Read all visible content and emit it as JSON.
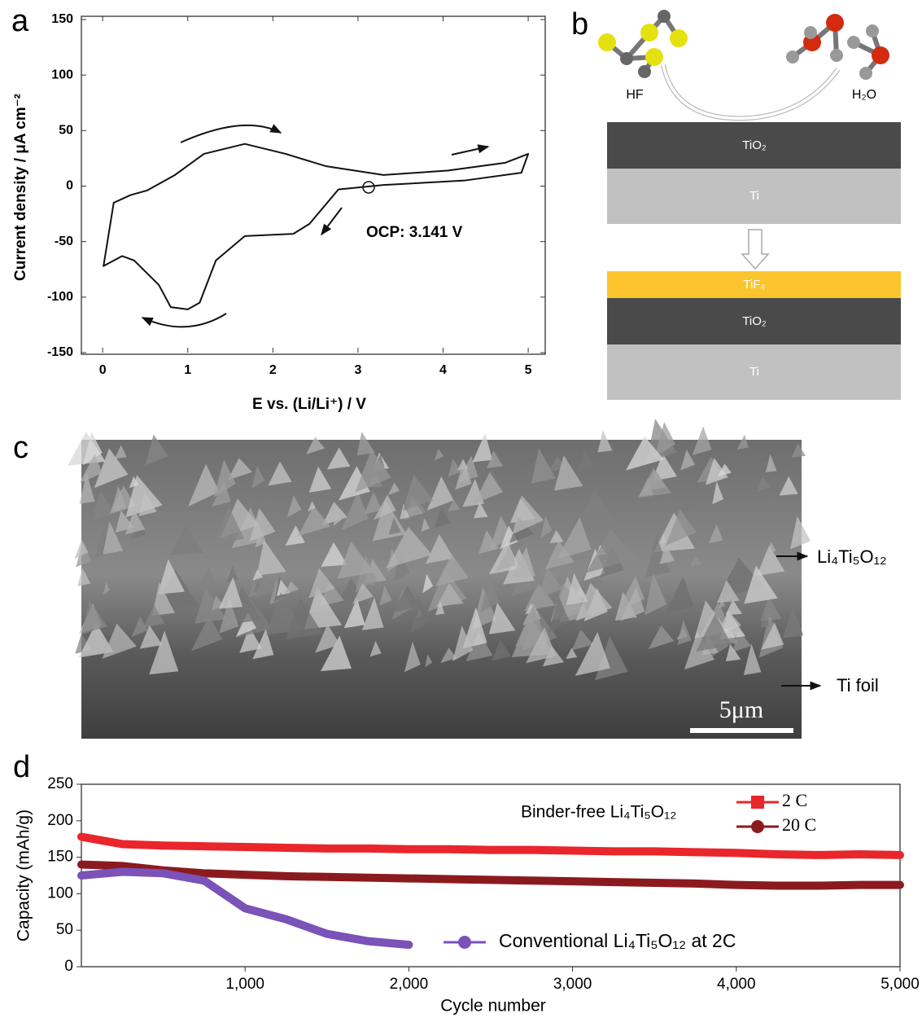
{
  "panel_labels": [
    "a",
    "b",
    "c",
    "d"
  ],
  "chart_data": [
    {
      "type": "line",
      "x_label": "E vs. (Li/Li⁺)  /  V",
      "y_label": "Current density / μA cm⁻²",
      "annotation": "OCP: 3.141 V",
      "color": "#111111",
      "xlim": [
        -0.25,
        5.2
      ],
      "ylim": [
        -150,
        150
      ],
      "xticks": [
        0,
        1,
        2,
        3,
        4,
        5
      ],
      "yticks": [
        -150,
        -100,
        -50,
        0,
        50,
        100,
        150
      ],
      "x": [
        0.01,
        0.13,
        0.33,
        0.52,
        0.85,
        1.19,
        1.67,
        2.15,
        2.62,
        3.3,
        4.06,
        4.73,
        5.0,
        4.92,
        4.25,
        3.3,
        2.77,
        2.43,
        2.24,
        1.67,
        1.33,
        1.14,
        1.0,
        0.8,
        0.66,
        0.37,
        0.23,
        0.01
      ],
      "values": [
        -72,
        -15,
        -8,
        -4,
        10,
        29,
        38,
        29,
        18,
        10,
        14,
        21,
        29,
        12,
        5,
        1,
        -3,
        -34,
        -43,
        -45,
        -67,
        -105,
        -111,
        -109,
        -89,
        -67,
        -63,
        -72
      ]
    },
    {
      "type": "line",
      "x_label": "Cycle number",
      "y_label": "Capacity (mAh/g)",
      "annotation": "Binder-free Li₄Ti₅O₁₂",
      "xlim": [
        0,
        5000
      ],
      "ylim": [
        0,
        250
      ],
      "xticks": [
        {
          "value": 1000,
          "label": "1,000"
        },
        {
          "value": 2000,
          "label": "2,000"
        },
        {
          "value": 3000,
          "label": "3,000"
        },
        {
          "value": 4000,
          "label": "4,000"
        },
        {
          "value": 5000,
          "label": "5,000"
        }
      ],
      "yticks": [
        0,
        50,
        100,
        150,
        200,
        250
      ],
      "x": [
        0,
        250,
        500,
        750,
        1000,
        1250,
        1500,
        1750,
        2000,
        2250,
        2500,
        2750,
        3000,
        3250,
        3500,
        3750,
        4000,
        4250,
        4500,
        4750,
        5000
      ],
      "series": [
        {
          "name": "2 C",
          "color": "#e8262b",
          "values": [
            178,
            168,
            166,
            165,
            164,
            163,
            162,
            162,
            161,
            161,
            160,
            160,
            159,
            158,
            158,
            157,
            156,
            154,
            153,
            154,
            153
          ]
        },
        {
          "name": "20 C",
          "color": "#8b1a1f",
          "values": [
            140,
            138,
            132,
            128,
            126,
            124,
            123,
            122,
            121,
            120,
            119,
            118,
            117,
            116,
            115,
            114,
            112,
            111,
            111,
            112,
            112
          ]
        },
        {
          "name": "Conventional Li₄Ti₅O₁₂ at 2C",
          "color": "#7a52b8",
          "values": [
            125,
            130,
            128,
            118,
            80,
            65,
            45,
            35,
            30,
            null,
            null,
            null,
            null,
            null,
            null,
            null,
            null,
            null,
            null,
            null,
            null
          ]
        }
      ]
    }
  ],
  "diagram": {
    "molecules": [
      "HF",
      "H₂O"
    ],
    "before": [
      "TiO₂",
      "Ti"
    ],
    "after": [
      "TiF₄",
      "TiO₂",
      "Ti"
    ]
  },
  "micrograph": {
    "labels": [
      "Li₄Ti₅O₁₂",
      "Ti foil"
    ],
    "scale_bar": "5μm"
  }
}
